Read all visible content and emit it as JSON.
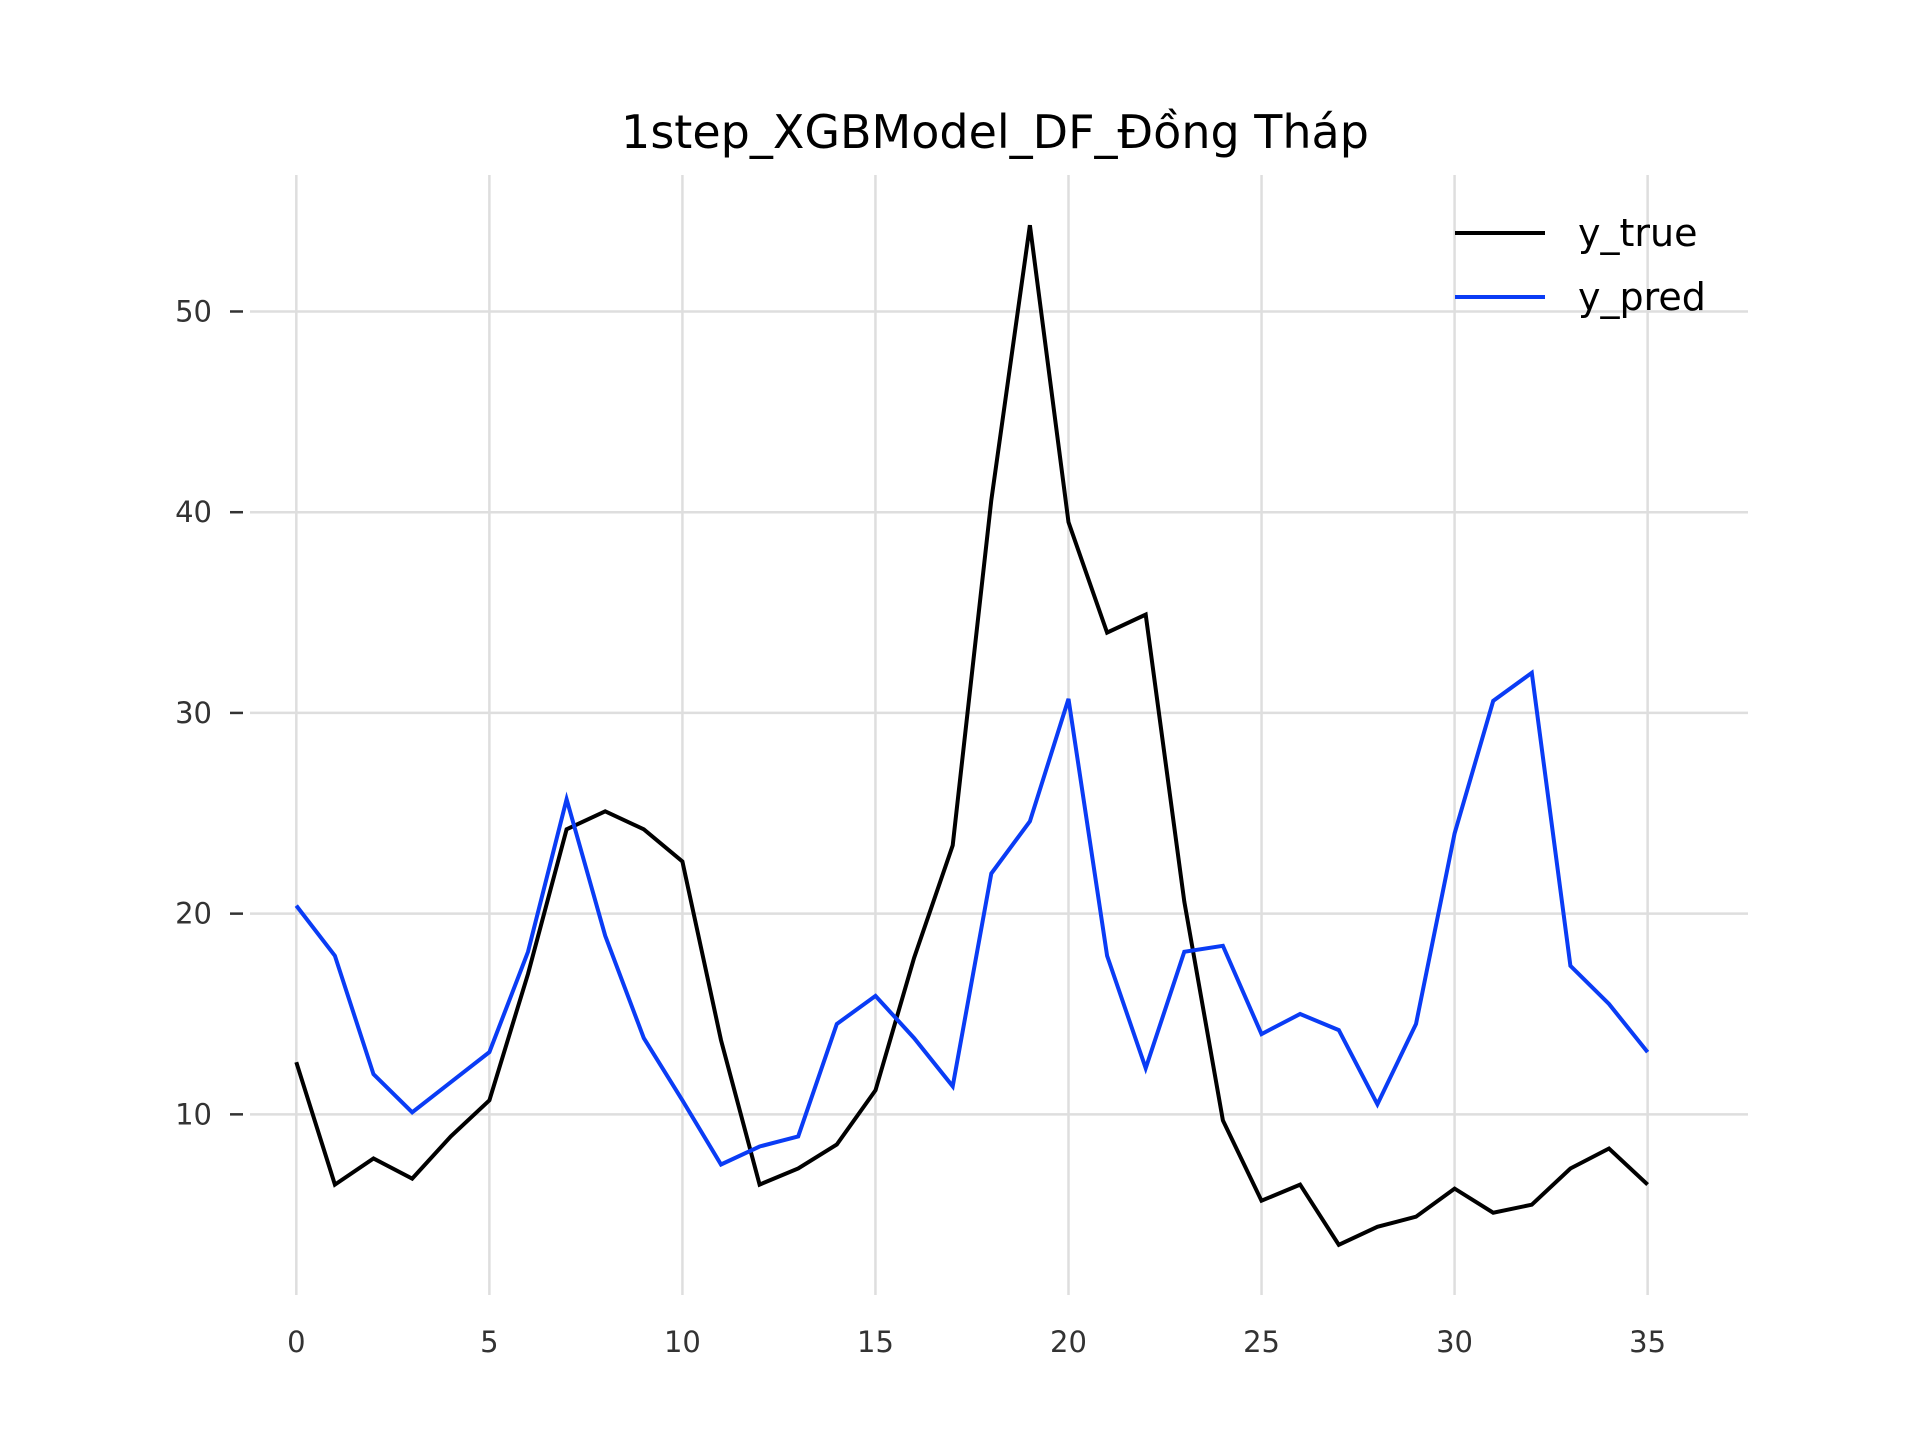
{
  "chart_data": {
    "type": "line",
    "title": "1step_XGBModel_DF_Đồng Tháp",
    "xlabel": "",
    "ylabel": "",
    "x": [
      0,
      1,
      2,
      3,
      4,
      5,
      6,
      7,
      8,
      9,
      10,
      11,
      12,
      13,
      14,
      15,
      16,
      17,
      18,
      19,
      20,
      21,
      22,
      23,
      24,
      25,
      26,
      27,
      28,
      29,
      30,
      31,
      32,
      33,
      34,
      35
    ],
    "xlim": [
      -1.2,
      37.6
    ],
    "ylim": [
      1.0,
      56.8
    ],
    "xticks": [
      "0",
      "5",
      "10",
      "15",
      "20",
      "25",
      "30",
      "35"
    ],
    "yticks": [
      "10",
      "20",
      "30",
      "40",
      "50"
    ],
    "grid": true,
    "legend_position": "top-right",
    "series": [
      {
        "name": "y_true",
        "color": "#000000",
        "values": [
          12.6,
          6.5,
          7.8,
          6.8,
          8.9,
          10.7,
          17.0,
          24.2,
          25.1,
          24.2,
          22.6,
          13.7,
          6.5,
          7.3,
          8.5,
          11.2,
          17.8,
          23.4,
          40.6,
          54.3,
          39.5,
          34.0,
          34.9,
          20.6,
          9.7,
          5.7,
          6.5,
          3.5,
          4.4,
          4.9,
          6.3,
          5.1,
          5.5,
          7.3,
          8.3,
          6.5
        ]
      },
      {
        "name": "y_pred",
        "color": "#0a3cf5",
        "values": [
          20.4,
          17.9,
          12.0,
          10.1,
          11.6,
          13.1,
          18.1,
          25.7,
          18.9,
          13.8,
          10.7,
          7.5,
          8.4,
          8.9,
          14.5,
          15.9,
          13.8,
          11.4,
          22.0,
          24.6,
          30.7,
          17.9,
          12.3,
          18.1,
          18.4,
          14.0,
          15.0,
          14.2,
          10.5,
          14.5,
          24.0,
          30.6,
          32.0,
          17.4,
          15.5,
          13.1
        ]
      }
    ]
  }
}
